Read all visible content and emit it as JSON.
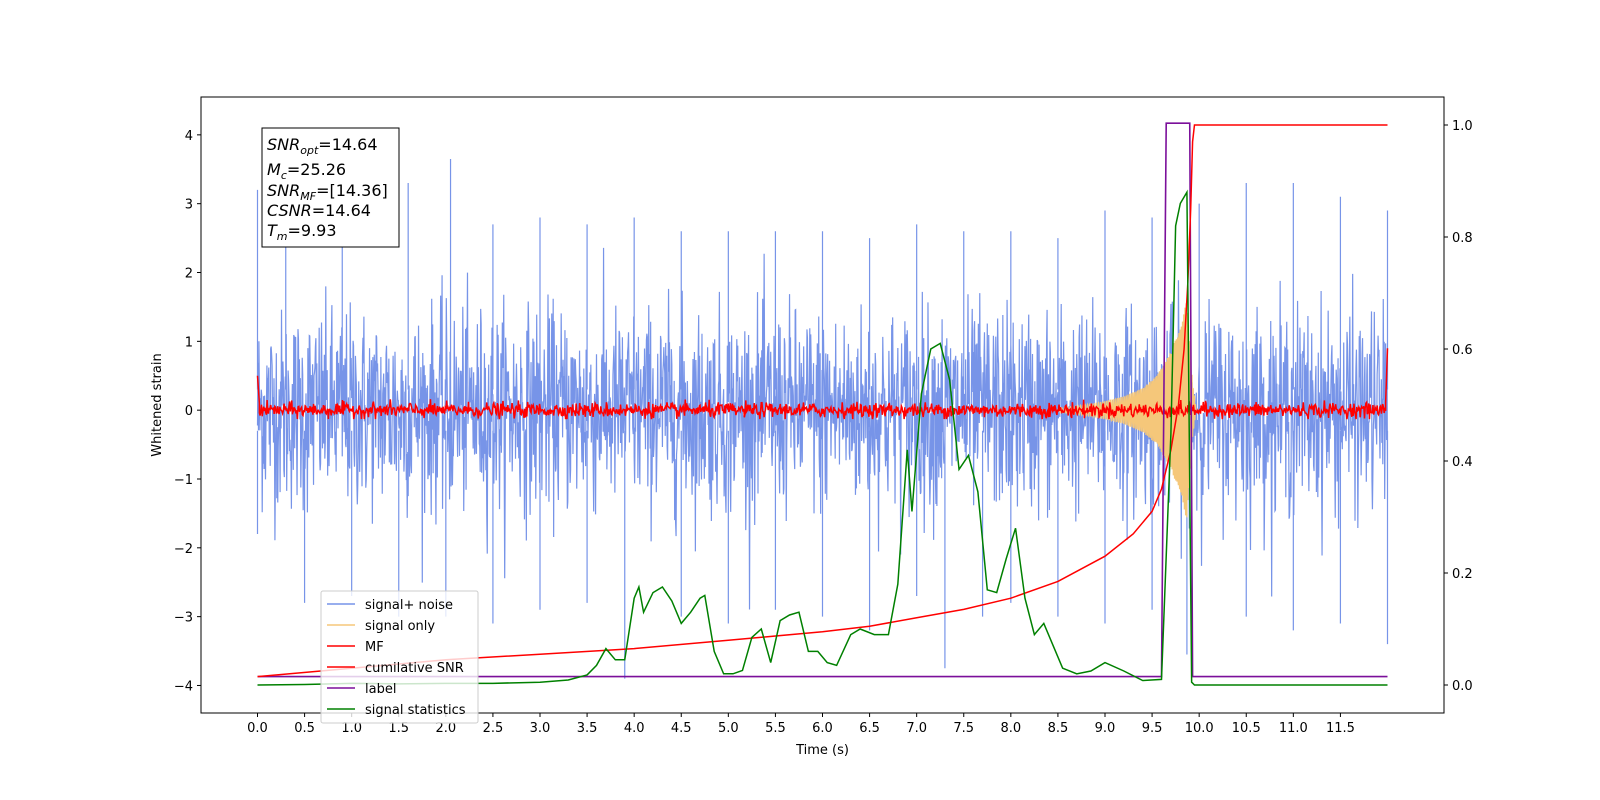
{
  "chart_data": {
    "type": "line",
    "xlabel": "Time (s)",
    "ylabel": "Whitened strain",
    "xlim": [
      -0.6,
      12.6
    ],
    "ylim": [
      -4.4,
      4.55
    ],
    "y2lim": [
      -0.05,
      1.05
    ],
    "xticks": [
      "0.0",
      "0.5",
      "1.0",
      "1.5",
      "2.0",
      "2.5",
      "3.0",
      "3.5",
      "4.0",
      "4.5",
      "5.0",
      "5.5",
      "6.0",
      "6.5",
      "7.0",
      "7.5",
      "8.0",
      "8.5",
      "9.0",
      "9.5",
      "10.0",
      "10.5",
      "11.0",
      "11.5"
    ],
    "yticks": [
      "4",
      "3",
      "2",
      "1",
      "0",
      "−1",
      "−2",
      "−3",
      "−4"
    ],
    "y2ticks": [
      "1.0",
      "0.8",
      "0.6",
      "0.4",
      "0.2",
      "0.0"
    ],
    "legend": {
      "position": "lower-left",
      "entries": [
        "signal+ noise",
        "signal only",
        "MF",
        "cumilative SNR",
        "label",
        "signal statistics"
      ]
    },
    "annotation": {
      "snr_opt": {
        "sym": "SNR",
        "sub": "opt",
        "val": "=14.64"
      },
      "mc": {
        "sym": "M",
        "sub": "c",
        "val": "=25.26"
      },
      "snr_mf": {
        "sym": "SNR",
        "sub": "MF",
        "val": "=[14.36]"
      },
      "csnr": {
        "sym": "CSNR",
        "sub": "",
        "val": "=14.64"
      },
      "tm": {
        "sym": "T",
        "sub": "m",
        "val": "=9.93"
      }
    },
    "colors": {
      "signal_noise": "#7794e8",
      "signal_only": "#f5c77a",
      "mf": "#ff0000",
      "cumulative_snr": "#ff0000",
      "label": "#7b0f9a",
      "signal_statistics": "#008000"
    },
    "series": [
      {
        "name": "signal+ noise",
        "axis": "left",
        "noise_envelope_upper": [
          [
            0.0,
            3.2
          ],
          [
            0.3,
            2.6
          ],
          [
            0.9,
            3.2
          ],
          [
            1.6,
            3.3
          ],
          [
            2.05,
            3.65
          ],
          [
            2.5,
            2.7
          ],
          [
            3.0,
            2.8
          ],
          [
            3.5,
            2.7
          ],
          [
            4.0,
            2.8
          ],
          [
            4.5,
            2.6
          ],
          [
            5.0,
            2.6
          ],
          [
            5.5,
            2.6
          ],
          [
            6.0,
            2.6
          ],
          [
            6.5,
            2.5
          ],
          [
            7.0,
            2.7
          ],
          [
            7.5,
            2.6
          ],
          [
            8.0,
            2.6
          ],
          [
            8.5,
            2.5
          ],
          [
            9.0,
            2.9
          ],
          [
            9.5,
            2.8
          ],
          [
            10.0,
            3.0
          ],
          [
            10.5,
            3.3
          ],
          [
            11.0,
            3.3
          ],
          [
            11.5,
            3.1
          ],
          [
            12.0,
            2.9
          ]
        ],
        "noise_envelope_lower": [
          [
            0.0,
            -1.8
          ],
          [
            0.5,
            -2.8
          ],
          [
            1.0,
            -2.7
          ],
          [
            1.5,
            -3.0
          ],
          [
            2.0,
            -3.0
          ],
          [
            2.5,
            -3.1
          ],
          [
            3.0,
            -2.9
          ],
          [
            3.5,
            -2.8
          ],
          [
            3.9,
            -3.9
          ],
          [
            4.5,
            -3.0
          ],
          [
            5.0,
            -3.1
          ],
          [
            5.5,
            -2.9
          ],
          [
            6.0,
            -3.0
          ],
          [
            6.5,
            -3.2
          ],
          [
            7.0,
            -2.7
          ],
          [
            7.3,
            -3.75
          ],
          [
            7.7,
            -3.0
          ],
          [
            8.0,
            -2.8
          ],
          [
            8.5,
            -3.0
          ],
          [
            9.0,
            -3.1
          ],
          [
            9.5,
            -2.9
          ],
          [
            9.87,
            -3.55
          ],
          [
            10.5,
            -3.0
          ],
          [
            11.0,
            -3.2
          ],
          [
            11.5,
            -3.1
          ],
          [
            12.0,
            -3.4
          ]
        ]
      },
      {
        "name": "signal only",
        "axis": "left",
        "chirp_amplitude": [
          [
            8.5,
            0.03
          ],
          [
            8.8,
            0.08
          ],
          [
            9.0,
            0.13
          ],
          [
            9.2,
            0.2
          ],
          [
            9.4,
            0.32
          ],
          [
            9.55,
            0.5
          ],
          [
            9.7,
            0.85
          ],
          [
            9.8,
            1.25
          ],
          [
            9.87,
            1.6
          ],
          [
            9.93,
            0.4
          ],
          [
            9.97,
            0.0
          ]
        ]
      },
      {
        "name": "MF",
        "axis": "left",
        "level": 0.0,
        "amplitude": 0.12,
        "start": [
          [
            0.0,
            0.5
          ],
          [
            0.02,
            0.1
          ]
        ],
        "end": [
          [
            11.98,
            0.1
          ],
          [
            12.0,
            0.9
          ]
        ]
      },
      {
        "name": "cumilative SNR",
        "axis": "right",
        "points": [
          [
            0.0,
            0.015
          ],
          [
            1.0,
            0.03
          ],
          [
            2.0,
            0.045
          ],
          [
            3.0,
            0.055
          ],
          [
            4.0,
            0.065
          ],
          [
            5.0,
            0.08
          ],
          [
            6.0,
            0.095
          ],
          [
            6.5,
            0.105
          ],
          [
            7.0,
            0.12
          ],
          [
            7.5,
            0.135
          ],
          [
            8.0,
            0.155
          ],
          [
            8.5,
            0.185
          ],
          [
            9.0,
            0.23
          ],
          [
            9.3,
            0.27
          ],
          [
            9.5,
            0.31
          ],
          [
            9.6,
            0.35
          ],
          [
            9.7,
            0.42
          ],
          [
            9.78,
            0.5
          ],
          [
            9.84,
            0.6
          ],
          [
            9.88,
            0.72
          ],
          [
            9.91,
            0.85
          ],
          [
            9.93,
            0.97
          ],
          [
            9.95,
            1.0
          ],
          [
            12.0,
            1.0
          ]
        ]
      },
      {
        "name": "label",
        "axis": "left",
        "points": [
          [
            0.0,
            -3.87
          ],
          [
            9.6,
            -3.87
          ],
          [
            9.65,
            4.17
          ],
          [
            9.9,
            4.17
          ],
          [
            9.93,
            -3.87
          ],
          [
            12.0,
            -3.87
          ]
        ]
      },
      {
        "name": "signal statistics",
        "axis": "right",
        "points": [
          [
            0.0,
            0.0
          ],
          [
            0.5,
            0.001
          ],
          [
            1.0,
            0.003
          ],
          [
            1.5,
            0.002
          ],
          [
            2.0,
            0.003
          ],
          [
            2.5,
            0.003
          ],
          [
            3.0,
            0.005
          ],
          [
            3.3,
            0.009
          ],
          [
            3.5,
            0.018
          ],
          [
            3.6,
            0.035
          ],
          [
            3.7,
            0.065
          ],
          [
            3.8,
            0.045
          ],
          [
            3.9,
            0.045
          ],
          [
            4.0,
            0.155
          ],
          [
            4.05,
            0.175
          ],
          [
            4.1,
            0.13
          ],
          [
            4.2,
            0.165
          ],
          [
            4.3,
            0.175
          ],
          [
            4.4,
            0.15
          ],
          [
            4.5,
            0.11
          ],
          [
            4.6,
            0.13
          ],
          [
            4.7,
            0.155
          ],
          [
            4.75,
            0.16
          ],
          [
            4.85,
            0.06
          ],
          [
            4.95,
            0.02
          ],
          [
            5.05,
            0.02
          ],
          [
            5.15,
            0.026
          ],
          [
            5.25,
            0.085
          ],
          [
            5.35,
            0.1
          ],
          [
            5.45,
            0.04
          ],
          [
            5.55,
            0.115
          ],
          [
            5.65,
            0.125
          ],
          [
            5.75,
            0.13
          ],
          [
            5.85,
            0.06
          ],
          [
            5.95,
            0.06
          ],
          [
            6.05,
            0.04
          ],
          [
            6.15,
            0.035
          ],
          [
            6.3,
            0.09
          ],
          [
            6.4,
            0.1
          ],
          [
            6.55,
            0.09
          ],
          [
            6.7,
            0.09
          ],
          [
            6.8,
            0.18
          ],
          [
            6.9,
            0.42
          ],
          [
            6.95,
            0.31
          ],
          [
            7.05,
            0.52
          ],
          [
            7.15,
            0.6
          ],
          [
            7.25,
            0.61
          ],
          [
            7.35,
            0.545
          ],
          [
            7.45,
            0.385
          ],
          [
            7.55,
            0.41
          ],
          [
            7.65,
            0.345
          ],
          [
            7.75,
            0.17
          ],
          [
            7.85,
            0.165
          ],
          [
            7.95,
            0.225
          ],
          [
            8.05,
            0.28
          ],
          [
            8.15,
            0.155
          ],
          [
            8.25,
            0.09
          ],
          [
            8.35,
            0.11
          ],
          [
            8.45,
            0.07
          ],
          [
            8.55,
            0.03
          ],
          [
            8.7,
            0.02
          ],
          [
            8.85,
            0.025
          ],
          [
            9.0,
            0.04
          ],
          [
            9.2,
            0.025
          ],
          [
            9.4,
            0.008
          ],
          [
            9.6,
            0.01
          ],
          [
            9.7,
            0.45
          ],
          [
            9.75,
            0.82
          ],
          [
            9.8,
            0.86
          ],
          [
            9.87,
            0.88
          ],
          [
            9.92,
            0.005
          ],
          [
            9.95,
            0.0
          ],
          [
            12.0,
            0.0
          ]
        ]
      }
    ]
  }
}
